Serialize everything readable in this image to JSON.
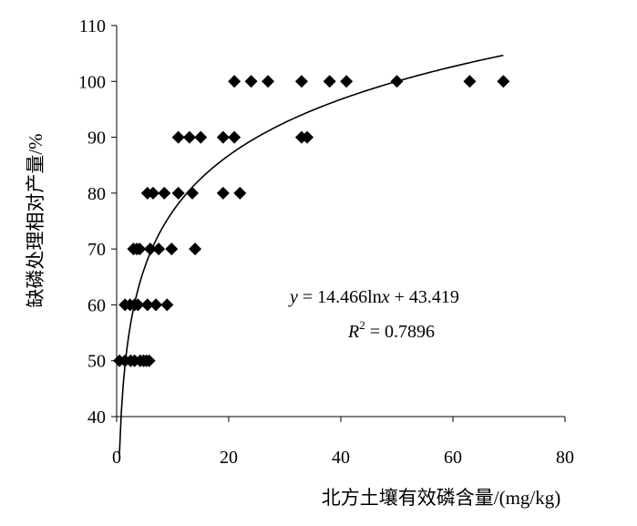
{
  "chart_data": {
    "type": "scatter",
    "xlabel": "北方土壤有效磷含量/(mg/kg)",
    "ylabel": "缺磷处理相对产量/%",
    "xlim": [
      0,
      80
    ],
    "ylim": [
      40,
      110
    ],
    "xticks": [
      "0",
      "20",
      "40",
      "60",
      "80"
    ],
    "yticks": [
      "40",
      "50",
      "60",
      "70",
      "80",
      "90",
      "100",
      "110"
    ],
    "grid": false,
    "points": [
      [
        0.5,
        50
      ],
      [
        1.5,
        50
      ],
      [
        2.5,
        50
      ],
      [
        3.2,
        50
      ],
      [
        4.2,
        50
      ],
      [
        4.8,
        50
      ],
      [
        5.3,
        50
      ],
      [
        5.8,
        50
      ],
      [
        1.5,
        60
      ],
      [
        2.4,
        60
      ],
      [
        3.2,
        60
      ],
      [
        3.8,
        60
      ],
      [
        5.5,
        60
      ],
      [
        7.0,
        60
      ],
      [
        9.0,
        60
      ],
      [
        3.0,
        70
      ],
      [
        3.6,
        70
      ],
      [
        4.1,
        70
      ],
      [
        6.0,
        70
      ],
      [
        7.5,
        70
      ],
      [
        9.8,
        70
      ],
      [
        14.0,
        70
      ],
      [
        5.5,
        80
      ],
      [
        6.5,
        80
      ],
      [
        8.5,
        80
      ],
      [
        11.0,
        80
      ],
      [
        13.5,
        80
      ],
      [
        19.0,
        80
      ],
      [
        22.0,
        80
      ],
      [
        11.0,
        90
      ],
      [
        13.0,
        90
      ],
      [
        15.0,
        90
      ],
      [
        19.0,
        90
      ],
      [
        21.0,
        90
      ],
      [
        33.0,
        90
      ],
      [
        34.0,
        90
      ],
      [
        21.0,
        100
      ],
      [
        24.0,
        100
      ],
      [
        27.0,
        100
      ],
      [
        33.0,
        100
      ],
      [
        38.0,
        100
      ],
      [
        41.0,
        100
      ],
      [
        50.0,
        100
      ],
      [
        63.0,
        100
      ],
      [
        69.0,
        100
      ]
    ],
    "fit": {
      "type": "log",
      "a": 14.466,
      "b": 43.419,
      "x_range": [
        0.5,
        69
      ]
    },
    "annotations": {
      "eq_y": "y",
      "eq_rest": " = 14.466ln",
      "eq_x": "x",
      "eq_tail": " + 43.419",
      "r2_r": "R",
      "r2_exp": "2",
      "r2_rest": " = 0.7896"
    }
  }
}
